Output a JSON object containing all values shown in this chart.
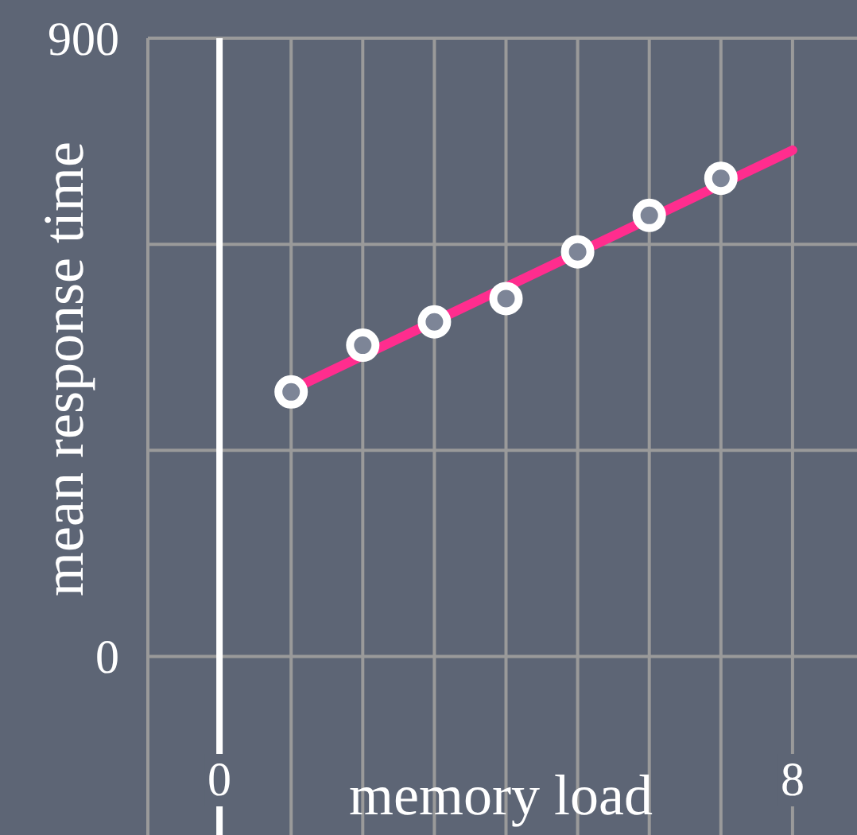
{
  "chart_data": {
    "type": "scatter",
    "xlabel": "memory load",
    "ylabel": "mean response time",
    "xlim": [
      -1,
      8.9
    ],
    "ylim": [
      -260,
      900
    ],
    "xticks": [
      {
        "value": -1,
        "label": null
      },
      0,
      {
        "value": 1,
        "label": null
      },
      {
        "value": 2,
        "label": null
      },
      {
        "value": 3,
        "label": null
      },
      {
        "value": 4,
        "label": null
      },
      {
        "value": 5,
        "label": null
      },
      {
        "value": 6,
        "label": null
      },
      {
        "value": 7,
        "label": null
      },
      8
    ],
    "yticks": [
      0,
      {
        "value": 300,
        "label": null
      },
      {
        "value": 600,
        "label": null
      },
      900
    ],
    "grid": true,
    "series": [
      {
        "type": "line",
        "color": "#ff2d8e",
        "x": [
          1,
          8
        ],
        "values": [
          388,
          737
        ],
        "marker": "none"
      },
      {
        "color": "#ffffff",
        "x": [
          1,
          2,
          3,
          4,
          5,
          6,
          7
        ],
        "values": [
          385,
          453,
          487,
          521,
          589,
          642,
          696
        ],
        "marker": "circle"
      }
    ]
  }
}
